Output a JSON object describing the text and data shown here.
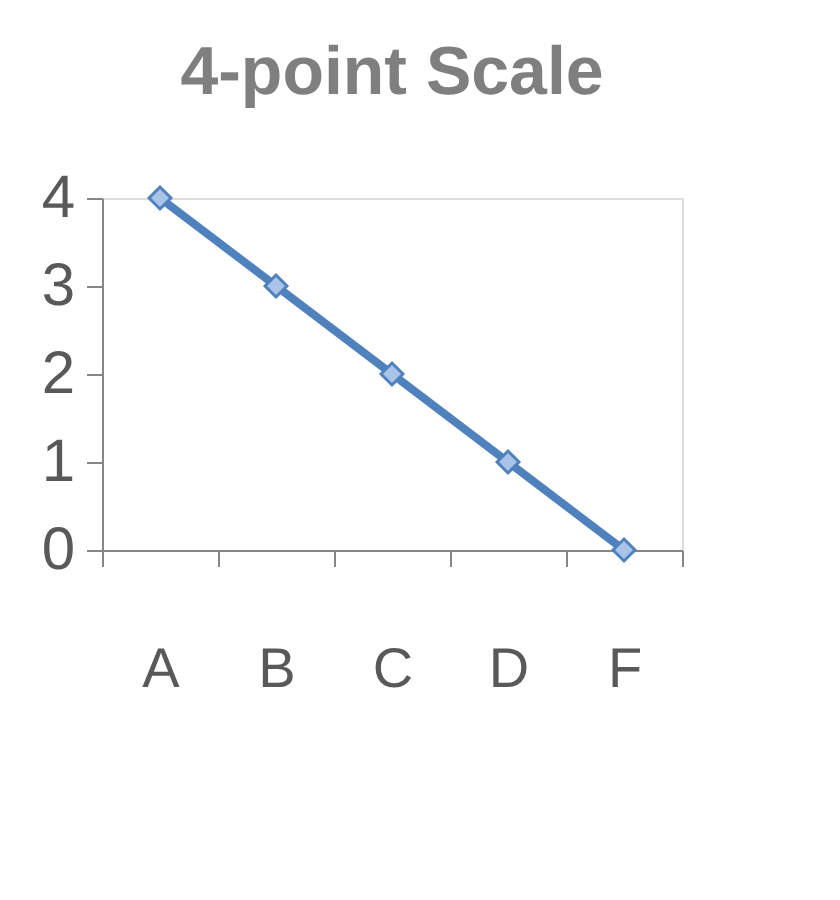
{
  "chart_data": {
    "type": "line",
    "title": "4-point Scale",
    "categories": [
      "A",
      "B",
      "C",
      "D",
      "F"
    ],
    "series": [
      {
        "color": "#4f81bd",
        "values": [
          4,
          3,
          2,
          1,
          0
        ]
      }
    ],
    "ylim": [
      0,
      4
    ],
    "yticks": [
      0,
      1,
      2,
      3,
      4
    ],
    "grid": false,
    "marker": "diamond",
    "line_style": "solid"
  }
}
